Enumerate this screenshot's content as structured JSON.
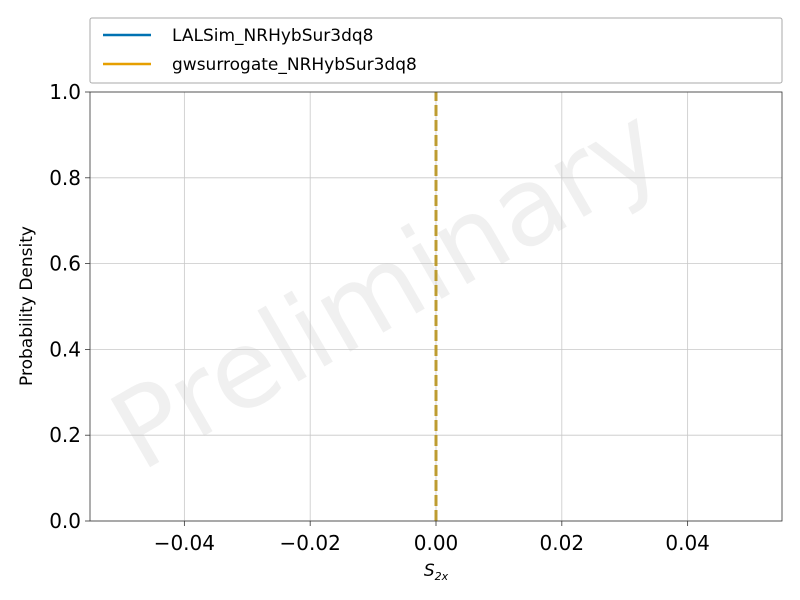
{
  "chart_data": {
    "type": "line",
    "title": "",
    "xlabel": "S",
    "xlabel_subscript": "2x",
    "ylabel": "Probability Density",
    "xlim": [
      -0.055,
      0.055
    ],
    "ylim": [
      0.0,
      1.0
    ],
    "x_ticks": [
      -0.04,
      -0.02,
      0.0,
      0.02,
      0.04
    ],
    "x_tick_labels": [
      "−0.04",
      "−0.02",
      "0.00",
      "0.02",
      "0.04"
    ],
    "y_ticks": [
      0.0,
      0.2,
      0.4,
      0.6,
      0.8,
      1.0
    ],
    "y_tick_labels": [
      "0.0",
      "0.2",
      "0.4",
      "0.6",
      "0.8",
      "1.0"
    ],
    "grid": true,
    "legend_position": "top, above plot",
    "watermark": "Preliminary",
    "series": [
      {
        "name": "LALSim_NRHybSur3dq8",
        "color": "#0072b2",
        "x": [
          0.0,
          0.0
        ],
        "y": [
          0.0,
          1.0
        ],
        "style": "dashed"
      },
      {
        "name": "gwsurrogate_NRHybSur3dq8",
        "color": "#e69f00",
        "x": [
          0.0,
          0.0
        ],
        "y": [
          0.0,
          1.0
        ],
        "style": "dashed"
      }
    ]
  }
}
